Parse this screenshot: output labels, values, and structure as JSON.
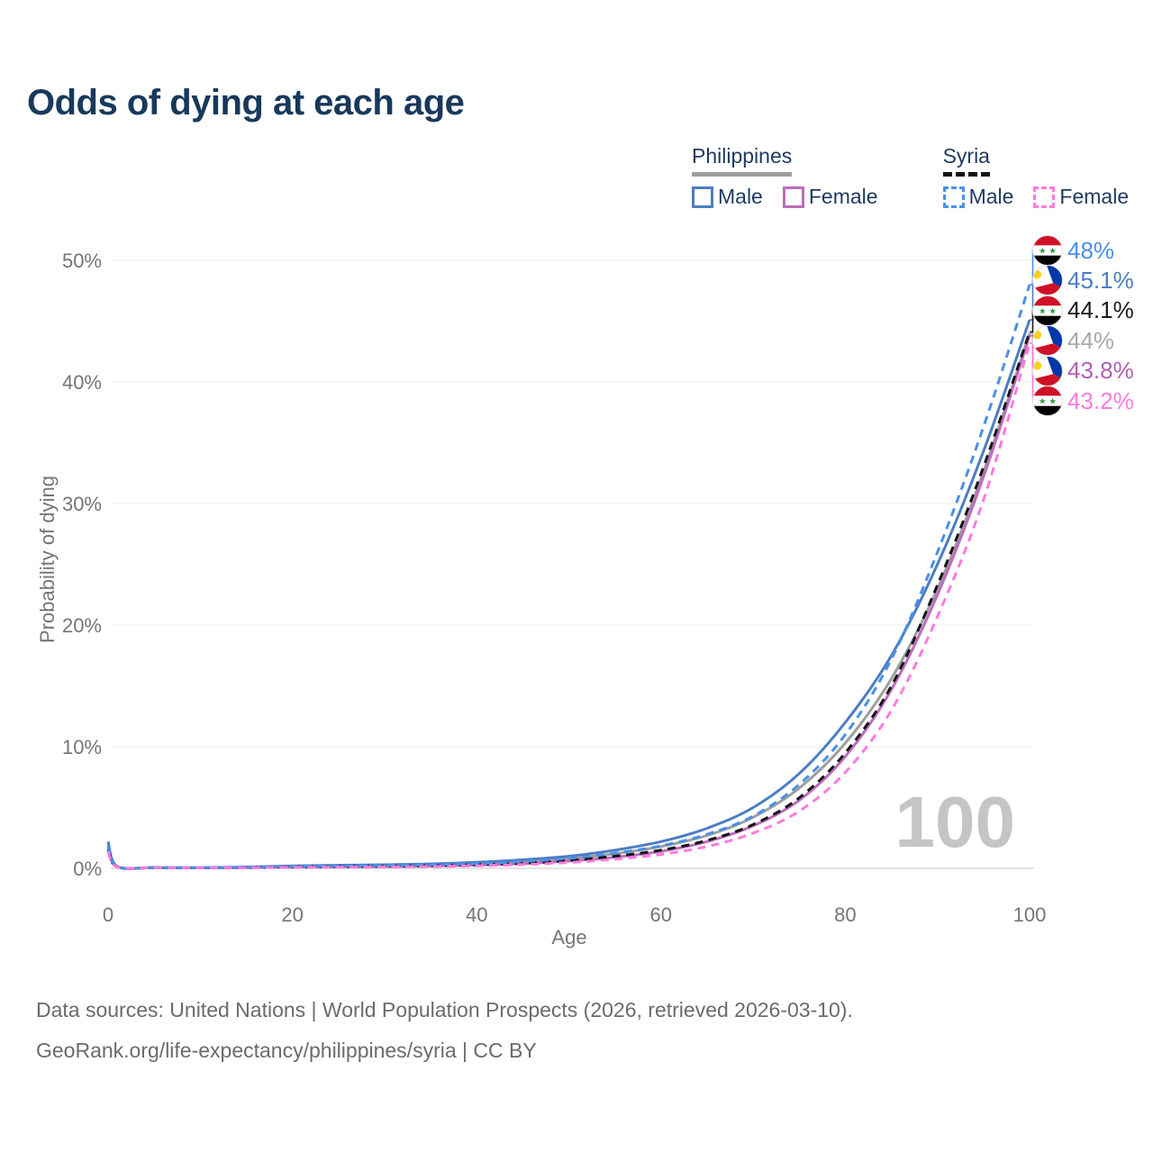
{
  "title": "Odds of dying at each age",
  "legend": {
    "groups": [
      {
        "label": "Philippines",
        "underline_style": "solid",
        "underline_color": "#9e9e9e",
        "items": [
          {
            "label": "Male",
            "color": "#4c7dc4",
            "dashed": false
          },
          {
            "label": "Female",
            "color": "#bd6cbd",
            "dashed": false
          }
        ]
      },
      {
        "label": "Syria",
        "underline_style": "dashed",
        "underline_color": "#141414",
        "items": [
          {
            "label": "Male",
            "color": "#4a90e8",
            "dashed": true
          },
          {
            "label": "Female",
            "color": "#ff7ade",
            "dashed": true
          }
        ]
      }
    ]
  },
  "chart_data": {
    "type": "line",
    "title": "Odds of dying at each age",
    "xlabel": "Age",
    "ylabel": "Probability of dying",
    "xlim": [
      0,
      100
    ],
    "ylim": [
      0,
      50
    ],
    "grid": "horizontal",
    "legend_position": "top-right",
    "watermark": "100",
    "yticks": [
      {
        "v": 0,
        "label": "0%"
      },
      {
        "v": 10,
        "label": "10%"
      },
      {
        "v": 20,
        "label": "20%"
      },
      {
        "v": 30,
        "label": "30%"
      },
      {
        "v": 40,
        "label": "40%"
      },
      {
        "v": 50,
        "label": "50%"
      }
    ],
    "xticks": [
      {
        "v": 0,
        "label": "0"
      },
      {
        "v": 20,
        "label": "20"
      },
      {
        "v": 40,
        "label": "40"
      },
      {
        "v": 60,
        "label": "60"
      },
      {
        "v": 80,
        "label": "80"
      },
      {
        "v": 100,
        "label": "100"
      }
    ],
    "x": [
      0,
      1,
      5,
      10,
      15,
      20,
      25,
      30,
      35,
      40,
      45,
      50,
      55,
      60,
      65,
      70,
      75,
      80,
      85,
      90,
      95,
      100
    ],
    "series": [
      {
        "name": "Philippines Total",
        "country": "philippines",
        "color": "#9e9e9e",
        "dash": false,
        "values": [
          1.9,
          0.14,
          0.06,
          0.05,
          0.09,
          0.15,
          0.19,
          0.22,
          0.28,
          0.38,
          0.54,
          0.8,
          1.2,
          1.8,
          2.7,
          4.2,
          6.6,
          10.3,
          15.6,
          23.0,
          32.6,
          44.0
        ]
      },
      {
        "name": "Philippines Female",
        "country": "philippines",
        "color": "#bd6cbd",
        "dash": false,
        "values": [
          1.55,
          0.12,
          0.05,
          0.04,
          0.06,
          0.1,
          0.12,
          0.15,
          0.19,
          0.27,
          0.39,
          0.6,
          0.92,
          1.4,
          2.2,
          3.5,
          5.6,
          9.2,
          14.7,
          22.5,
          32.2,
          43.8
        ]
      },
      {
        "name": "Philippines Male",
        "country": "philippines",
        "color": "#4c7dc4",
        "dash": false,
        "values": [
          2.2,
          0.16,
          0.07,
          0.06,
          0.11,
          0.2,
          0.26,
          0.3,
          0.37,
          0.5,
          0.7,
          1.0,
          1.5,
          2.2,
          3.3,
          5.0,
          7.8,
          12.0,
          17.5,
          25.0,
          34.3,
          45.1
        ]
      },
      {
        "name": "Syria Total",
        "country": "syria",
        "color": "#141414",
        "dash": true,
        "values": [
          1.6,
          0.11,
          0.05,
          0.04,
          0.07,
          0.12,
          0.15,
          0.17,
          0.22,
          0.3,
          0.43,
          0.65,
          1.0,
          1.5,
          2.3,
          3.6,
          5.8,
          9.5,
          15.0,
          23.3,
          33.0,
          44.1
        ]
      },
      {
        "name": "Syria Male",
        "country": "syria",
        "color": "#4a90e8",
        "dash": true,
        "values": [
          1.8,
          0.13,
          0.06,
          0.05,
          0.1,
          0.17,
          0.21,
          0.24,
          0.3,
          0.4,
          0.56,
          0.82,
          1.25,
          1.85,
          2.8,
          4.3,
          6.9,
          11.0,
          17.2,
          26.0,
          36.3,
          48.0
        ]
      },
      {
        "name": "Syria Female",
        "country": "syria",
        "color": "#ff7ade",
        "dash": true,
        "values": [
          1.4,
          0.1,
          0.04,
          0.035,
          0.05,
          0.08,
          0.1,
          0.12,
          0.15,
          0.21,
          0.31,
          0.48,
          0.75,
          1.15,
          1.8,
          2.9,
          4.7,
          7.9,
          13.0,
          20.7,
          30.3,
          43.2
        ]
      }
    ],
    "end_labels": [
      {
        "text": "48%",
        "value": 48.0,
        "series": "Syria Male",
        "flag": "syria",
        "color": "#4a90e8"
      },
      {
        "text": "45.1%",
        "value": 45.1,
        "series": "Philippines Male",
        "flag": "philippines",
        "color": "#4c7dc4"
      },
      {
        "text": "44.1%",
        "value": 44.1,
        "series": "Syria Total",
        "flag": "syria",
        "color": "#1a1a1a"
      },
      {
        "text": "44%",
        "value": 44.0,
        "series": "Philippines Total",
        "flag": "philippines",
        "color": "#a9a9a9"
      },
      {
        "text": "43.8%",
        "value": 43.8,
        "series": "Philippines Female",
        "flag": "philippines",
        "color": "#b25fb2"
      },
      {
        "text": "43.2%",
        "value": 43.2,
        "series": "Syria Female",
        "flag": "syria",
        "color": "#ff7ade"
      }
    ]
  },
  "footer": {
    "line1": "Data sources: United Nations | World Population Prospects (2026, retrieved 2026-03-10).",
    "line2": "GeoRank.org/life-expectancy/philippines/syria | CC BY"
  }
}
